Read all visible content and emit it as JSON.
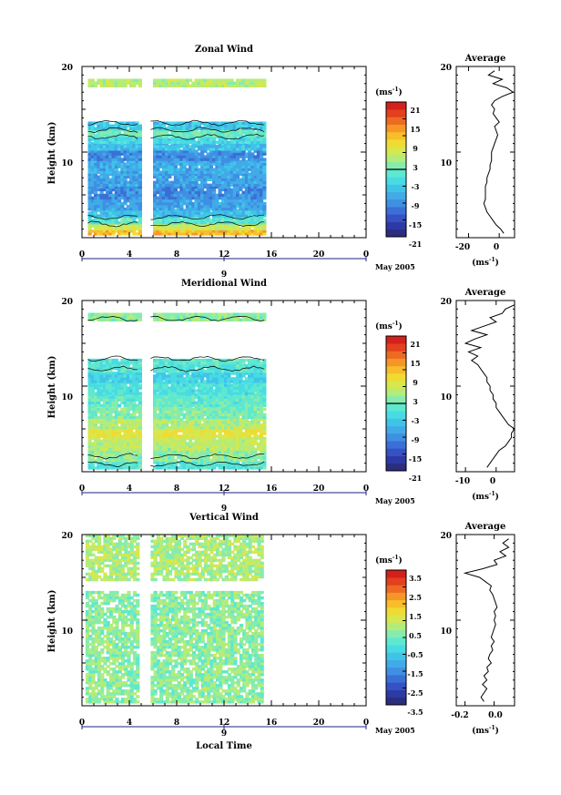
{
  "colormap": [
    "#2b2d7f",
    "#2d3aa6",
    "#3551c4",
    "#3a6fd6",
    "#3f8fe3",
    "#41abe8",
    "#3fc4e8",
    "#48dbe4",
    "#5ee8cf",
    "#86ecad",
    "#b4ec7a",
    "#d6e84d",
    "#f0db33",
    "#f8bd2a",
    "#f59626",
    "#ee6a22",
    "#e3401e",
    "#d4201b"
  ],
  "panels": [
    {
      "title": "Zonal Wind",
      "ylabel": "Height (km)",
      "yticks": [
        "10",
        "20"
      ],
      "xticks": [
        "0",
        "4",
        "8",
        "12",
        "16",
        "20",
        "0"
      ],
      "date_tick": "9",
      "date_label": "May 2005",
      "xlabel": "",
      "colorbar": {
        "unit": "(ms",
        "unit_sup": "-1",
        "unit_close": ")",
        "labels": [
          "21",
          "15",
          "9",
          "3",
          "-3",
          "-9",
          "-15",
          "-21"
        ],
        "range": [
          -24,
          24
        ],
        "zero_line": 0
      },
      "profile": {
        "title": "Average",
        "xticks": [
          "-20",
          "0"
        ],
        "xunit": "(ms",
        "xunit_sup": "-1",
        "xunit_close": ")",
        "yticks": [
          "10",
          "20"
        ],
        "xlim": [
          -28,
          10
        ],
        "heights": [
          0.5,
          1,
          1.5,
          2,
          2.5,
          3,
          3.5,
          4,
          4.5,
          5,
          5.5,
          6,
          6.5,
          7,
          7.5,
          8,
          8.5,
          9,
          9.5,
          10,
          10.5,
          11,
          11.5,
          12,
          12.5,
          13,
          13.5,
          14,
          14.5,
          15,
          15.5,
          16,
          16.5,
          17,
          17.5,
          18,
          18.5,
          19,
          19.5
        ],
        "values": [
          3,
          1,
          -2,
          -4,
          -6,
          -8,
          -9,
          -10,
          -9,
          -9,
          -9,
          -9,
          -8,
          -8,
          -7,
          -6,
          -6,
          -5,
          -5,
          -5,
          -4,
          -3,
          -2,
          -1,
          -2,
          -3,
          0,
          -2,
          -4,
          -3,
          -5,
          -3,
          2,
          9,
          5,
          -4,
          2,
          -7,
          -3
        ]
      },
      "field": {
        "time_cover": [
          0.5,
          15.5
        ],
        "gap": [
          4.8,
          5.8
        ],
        "bands": [
          {
            "h0": 0.3,
            "h1": 0.9,
            "u": 12
          },
          {
            "h0": 0.9,
            "h1": 1.6,
            "u": 6
          },
          {
            "h0": 1.6,
            "h1": 2.4,
            "u": -2
          },
          {
            "h0": 2.4,
            "h1": 3.2,
            "u": -7
          },
          {
            "h0": 3.2,
            "h1": 4.5,
            "u": -10
          },
          {
            "h0": 4.5,
            "h1": 6.0,
            "u": -12
          },
          {
            "h0": 6.0,
            "h1": 7.5,
            "u": -10
          },
          {
            "h0": 7.5,
            "h1": 9.0,
            "u": -9
          },
          {
            "h0": 9.0,
            "h1": 10.2,
            "u": -12
          },
          {
            "h0": 10.2,
            "h1": 11.0,
            "u": -7
          },
          {
            "h0": 11.0,
            "h1": 11.8,
            "u": -4
          },
          {
            "h0": 11.8,
            "h1": 12.6,
            "u": 0
          },
          {
            "h0": 12.6,
            "h1": 13.4,
            "u": -6
          },
          {
            "h0": 17.6,
            "h1": 18.4,
            "u": 4
          }
        ]
      }
    },
    {
      "title": "Meridional Wind",
      "ylabel": "Height (km)",
      "yticks": [
        "10",
        "20"
      ],
      "xticks": [
        "0",
        "4",
        "8",
        "12",
        "16",
        "20",
        "0"
      ],
      "date_tick": "9",
      "date_label": "May 2005",
      "xlabel": "",
      "colorbar": {
        "unit": "(ms",
        "unit_sup": "-1",
        "unit_close": ")",
        "labels": [
          "21",
          "15",
          "9",
          "3",
          "-3",
          "-9",
          "-15",
          "-21"
        ],
        "range": [
          -24,
          24
        ],
        "zero_line": 0
      },
      "profile": {
        "title": "Average",
        "xticks": [
          "-10",
          "0"
        ],
        "xunit": "(ms",
        "xunit_sup": "-1",
        "xunit_close": ")",
        "yticks": [
          "10",
          "20"
        ],
        "xlim": [
          -13,
          6
        ],
        "heights": [
          0.5,
          1,
          1.5,
          2,
          2.5,
          3,
          3.5,
          4,
          4.5,
          5,
          5.5,
          6,
          6.5,
          7,
          7.5,
          8,
          8.5,
          9,
          9.5,
          10,
          10.5,
          11,
          11.5,
          12,
          12.5,
          13,
          13.5,
          14,
          14.5,
          15,
          15.5,
          16,
          16.5,
          17,
          17.5,
          18,
          18.5,
          19,
          19.5
        ],
        "values": [
          -3,
          -2,
          -1,
          0,
          1,
          3,
          4,
          5,
          5,
          6,
          4,
          3,
          2,
          1,
          0,
          0,
          -1,
          -1,
          -2,
          -2,
          -3,
          -3,
          -4,
          -5,
          -6,
          -8,
          -6,
          -9,
          -5,
          -10,
          -7,
          -3,
          -8,
          -4,
          0,
          -2,
          2,
          3,
          6
        ]
      },
      "field": {
        "time_cover": [
          0.5,
          15.5
        ],
        "gap": [
          4.8,
          5.8
        ],
        "bands": [
          {
            "h0": 0.3,
            "h1": 1.2,
            "u": -2
          },
          {
            "h0": 1.2,
            "h1": 2.5,
            "u": 2
          },
          {
            "h0": 2.5,
            "h1": 4.0,
            "u": 5
          },
          {
            "h0": 4.0,
            "h1": 5.0,
            "u": 8
          },
          {
            "h0": 5.0,
            "h1": 6.2,
            "u": 4
          },
          {
            "h0": 6.2,
            "h1": 7.6,
            "u": 1
          },
          {
            "h0": 7.6,
            "h1": 9.0,
            "u": -1
          },
          {
            "h0": 9.0,
            "h1": 10.4,
            "u": -3
          },
          {
            "h0": 10.4,
            "h1": 11.6,
            "u": -5
          },
          {
            "h0": 11.6,
            "h1": 13.2,
            "u": -2
          },
          {
            "h0": 17.6,
            "h1": 18.4,
            "u": 2
          }
        ]
      }
    },
    {
      "title": "Vertical Wind",
      "ylabel": "Height (km)",
      "yticks": [
        "10",
        "20"
      ],
      "xticks": [
        "0",
        "4",
        "8",
        "12",
        "16",
        "20",
        "0"
      ],
      "date_tick": "9",
      "date_label": "May 2005",
      "xlabel": "Local Time",
      "colorbar": {
        "unit": "(ms",
        "unit_sup": "-1",
        "unit_close": ")",
        "labels": [
          "3.5",
          "2.5",
          "1.5",
          "0.5",
          "-0.5",
          "-1.5",
          "-2.5",
          "-3.5"
        ],
        "range": [
          -4,
          4
        ],
        "zero_line": null
      },
      "profile": {
        "title": "Average",
        "xticks": [
          "-0.2",
          "0.0"
        ],
        "xunit": "(ms",
        "xunit_sup": "-1",
        "xunit_close": ")",
        "yticks": [
          "10",
          "20"
        ],
        "xlim": [
          -0.26,
          0.14
        ],
        "heights": [
          0.5,
          1,
          1.5,
          2,
          2.5,
          3,
          3.5,
          4,
          4.5,
          5,
          5.5,
          6,
          6.5,
          7,
          7.5,
          8,
          8.5,
          9,
          9.5,
          10,
          10.5,
          11,
          11.5,
          12,
          12.5,
          13,
          13.5,
          14,
          14.5,
          15,
          15.5,
          16,
          16.5,
          17,
          17.5,
          18,
          18.5,
          19,
          19.5
        ],
        "values": [
          -0.07,
          -0.09,
          -0.07,
          -0.05,
          -0.08,
          -0.05,
          -0.07,
          -0.04,
          -0.05,
          -0.02,
          -0.04,
          -0.03,
          -0.01,
          -0.02,
          0.0,
          -0.02,
          -0.01,
          0.0,
          0.01,
          0.0,
          0.01,
          0.0,
          0.02,
          0.01,
          0.0,
          -0.01,
          -0.03,
          -0.02,
          -0.06,
          -0.1,
          -0.2,
          -0.08,
          0.02,
          0.0,
          0.08,
          0.04,
          0.1,
          0.06,
          0.1
        ]
      },
      "field": {
        "time_cover": [
          0.3,
          15.3
        ],
        "gap": [
          4.8,
          5.8
        ],
        "bands": [
          {
            "h0": 0.3,
            "h1": 13.4,
            "u": 0.3
          },
          {
            "h0": 14.6,
            "h1": 20.0,
            "u": 0.6
          }
        ]
      }
    }
  ]
}
